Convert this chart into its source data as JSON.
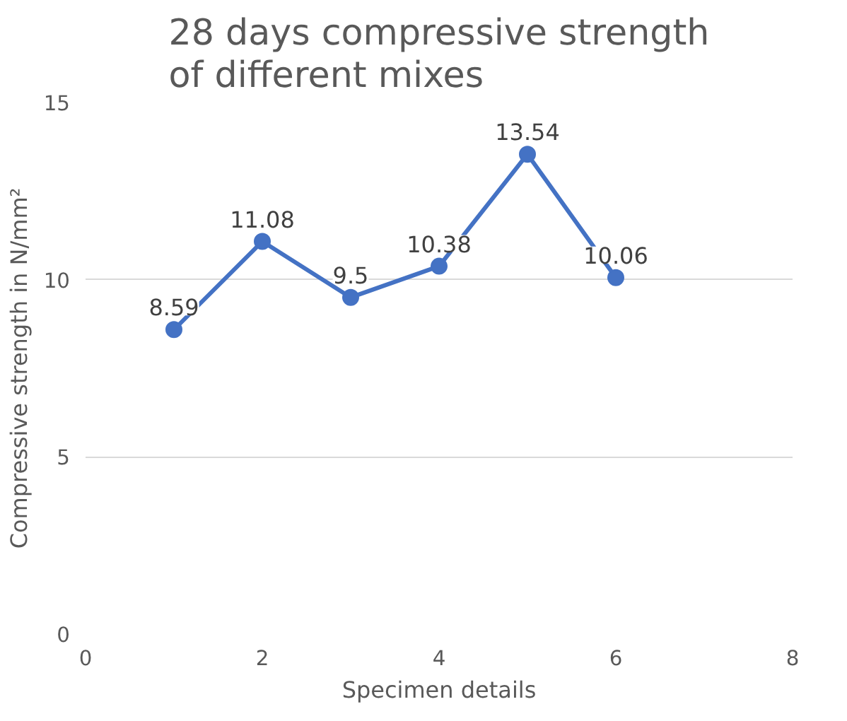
{
  "chart_data": {
    "type": "line",
    "title": "28 days compressive strength of different mixes",
    "xlabel": "Specimen details",
    "ylabel": "Compressive strength in N/mm²",
    "x": [
      1,
      2,
      3,
      4,
      5,
      6
    ],
    "series": [
      {
        "color": "#4472c4",
        "values": [
          8.59,
          11.08,
          9.5,
          10.38,
          13.54,
          10.06
        ]
      }
    ],
    "xlim": [
      0,
      8
    ],
    "xticks": [
      0,
      2,
      4,
      6,
      8
    ],
    "ylim": [
      0,
      15
    ],
    "yticks": [
      0,
      5,
      10,
      15
    ],
    "grid": "y",
    "marker": "circle",
    "line_style": "solid",
    "data_labels": true
  }
}
